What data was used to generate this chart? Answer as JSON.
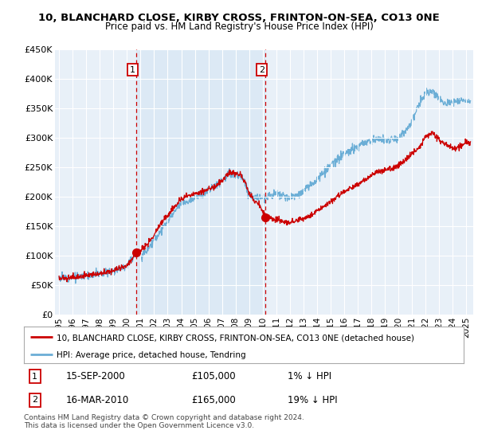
{
  "title": "10, BLANCHARD CLOSE, KIRBY CROSS, FRINTON-ON-SEA, CO13 0NE",
  "subtitle": "Price paid vs. HM Land Registry's House Price Index (HPI)",
  "ylabel_ticks": [
    "£0",
    "£50K",
    "£100K",
    "£150K",
    "£200K",
    "£250K",
    "£300K",
    "£350K",
    "£400K",
    "£450K"
  ],
  "ylim": [
    0,
    450000
  ],
  "xlim_start": 1994.7,
  "xlim_end": 2025.5,
  "purchase1_x": 2000.71,
  "purchase1_y": 105000,
  "purchase1_label": "1",
  "purchase2_x": 2010.21,
  "purchase2_y": 165000,
  "purchase2_label": "2",
  "legend_line1": "10, BLANCHARD CLOSE, KIRBY CROSS, FRINTON-ON-SEA, CO13 0NE (detached house)",
  "legend_line2": "HPI: Average price, detached house, Tendring",
  "footnote": "Contains HM Land Registry data © Crown copyright and database right 2024.\nThis data is licensed under the Open Government Licence v3.0.",
  "hpi_color": "#6baed6",
  "price_color": "#cc0000",
  "vline_color": "#cc0000",
  "shade_color": "#dce9f5",
  "background_color": "#e8f0f8",
  "grid_color": "#ffffff"
}
